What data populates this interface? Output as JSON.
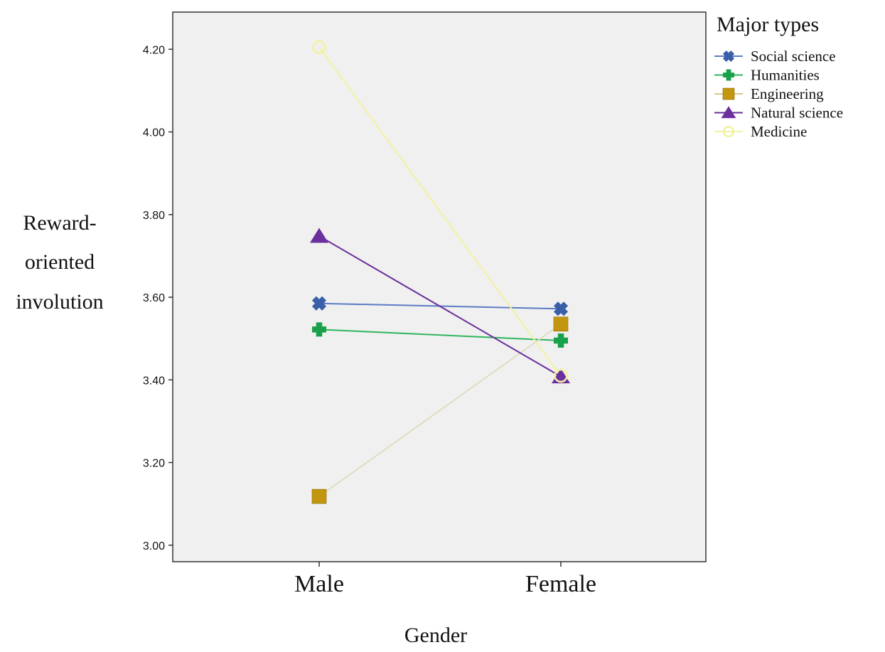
{
  "chart_data": {
    "type": "line",
    "title": "",
    "xlabel": "Gender",
    "ylabel_lines": [
      "Reward-",
      "oriented",
      "involution"
    ],
    "categories": [
      "Male",
      "Female"
    ],
    "ylim": [
      2.96,
      4.29
    ],
    "yticks": [
      "3.00",
      "3.20",
      "3.40",
      "3.60",
      "3.80",
      "4.00",
      "4.20"
    ],
    "legend_title": "Major types",
    "legend_position": "top-right",
    "background": "#f0f0f0",
    "series": [
      {
        "name": "Social science",
        "values": [
          3.585,
          3.572
        ],
        "color": "#3b5ea8",
        "line_color": "#5b7cc4",
        "marker": "x-cross"
      },
      {
        "name": "Humanities",
        "values": [
          3.522,
          3.495
        ],
        "color": "#19a04a",
        "line_color": "#2fb55e",
        "marker": "plus"
      },
      {
        "name": "Engineering",
        "values": [
          3.118,
          3.535
        ],
        "color": "#c4960f",
        "line_color": "#e0dcc0",
        "marker": "square"
      },
      {
        "name": "Natural science",
        "values": [
          3.748,
          3.408
        ],
        "color": "#6b2f9e",
        "line_color": "#6b2f9e",
        "marker": "triangle"
      },
      {
        "name": "Medicine",
        "values": [
          4.205,
          3.41
        ],
        "color": "#f2f2a0",
        "line_color": "#f2f2a0",
        "marker": "circle"
      }
    ]
  }
}
